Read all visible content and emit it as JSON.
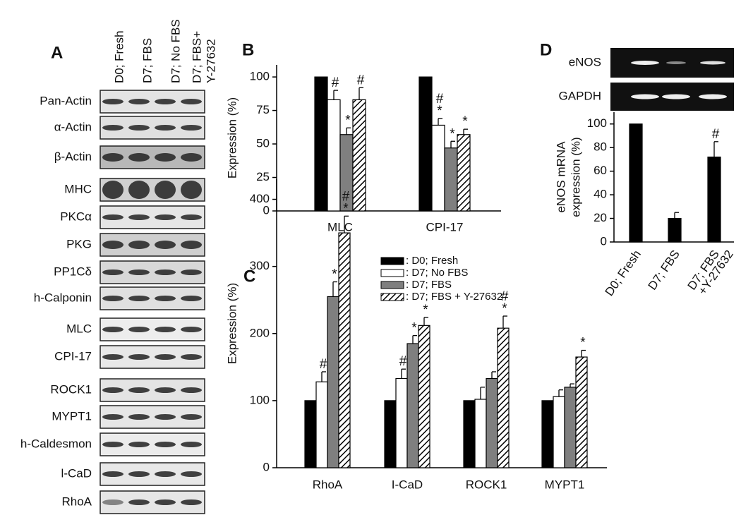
{
  "panel_a": {
    "label": "A",
    "columns": [
      [
        "D0; Fresh"
      ],
      [
        "D7; FBS"
      ],
      [
        "D7; No FBS"
      ],
      [
        "D7; FBS+",
        "Y-27632"
      ]
    ],
    "rows": [
      "Pan-Actin",
      "α-Actin",
      "β-Actin",
      "MHC",
      "PKCα",
      "PKG",
      "PP1Cδ",
      "h-Calponin",
      "MLC",
      "CPI-17",
      "ROCK1",
      "MYPT1",
      "h-Caldesmon",
      "l-CaD",
      "RhoA"
    ]
  },
  "panel_d_gel": {
    "rows": [
      "eNOS",
      "GAPDH"
    ]
  },
  "chart_data": [
    {
      "panel": "B",
      "type": "bar",
      "ylabel": "Expression (%)",
      "categories": [
        "MLC",
        "CPI-17"
      ],
      "ylim": [
        0,
        109
      ],
      "yticks": [
        0,
        25,
        50,
        75,
        100
      ],
      "series": [
        {
          "color": "#000000",
          "values": [
            100,
            100
          ],
          "errors": [
            null,
            null
          ],
          "annotations": [
            null,
            null
          ]
        },
        {
          "color": "#ffffff",
          "values": [
            83,
            64
          ],
          "errors": [
            7,
            5
          ],
          "annotations": [
            [
              "#"
            ],
            [
              "#",
              "*"
            ]
          ]
        },
        {
          "color": "#7f7f7f",
          "values": [
            57,
            47
          ],
          "errors": [
            5,
            5
          ],
          "annotations": [
            [
              "*"
            ],
            [
              "*"
            ]
          ]
        },
        {
          "color": "#ffffff",
          "hatch": true,
          "values": [
            83,
            57
          ],
          "errors": [
            9,
            4
          ],
          "annotations": [
            [
              "#"
            ],
            [
              "*"
            ]
          ]
        }
      ]
    },
    {
      "panel": "C",
      "type": "bar",
      "ylabel": "Expression (%)",
      "categories": [
        "RhoA",
        "I-CaD",
        "ROCK1",
        "MYPT1"
      ],
      "ylim": [
        0,
        430
      ],
      "yticks": [
        0,
        100,
        200,
        300,
        400
      ],
      "series": [
        {
          "name": ": D0; Fresh",
          "color": "#000000",
          "values": [
            100,
            100,
            100,
            100
          ],
          "errors": [
            null,
            null,
            null,
            null
          ],
          "annotations": [
            null,
            null,
            null,
            null
          ]
        },
        {
          "name": ": D7; No FBS",
          "color": "#ffffff",
          "values": [
            128,
            133,
            102,
            106
          ],
          "errors": [
            15,
            14,
            18,
            10
          ],
          "annotations": [
            [
              "#"
            ],
            [
              "#"
            ],
            null,
            null
          ]
        },
        {
          "name": ": D7; FBS",
          "color": "#7f7f7f",
          "values": [
            255,
            185,
            133,
            120
          ],
          "errors": [
            22,
            12,
            10,
            5
          ],
          "annotations": [
            [
              "*"
            ],
            [
              "*"
            ],
            null,
            null
          ]
        },
        {
          "name": ": D7; FBS + Y-27632",
          "color": "#ffffff",
          "hatch": true,
          "values": [
            350,
            212,
            208,
            165
          ],
          "errors": [
            25,
            12,
            18,
            10
          ],
          "annotations": [
            [
              "#",
              "*"
            ],
            [
              "*"
            ],
            [
              "#",
              "*"
            ],
            [
              "*"
            ]
          ]
        }
      ]
    },
    {
      "panel": "D",
      "type": "bar",
      "ylabel": [
        "eNOS mRNA",
        "expression (%)"
      ],
      "categories": [
        [
          "D0; Fresh"
        ],
        [
          "D7; FBS"
        ],
        [
          "D7; FBS",
          "+Y-27632"
        ]
      ],
      "ylim": [
        0,
        110
      ],
      "yticks": [
        0,
        20,
        40,
        60,
        80,
        100
      ],
      "series": [
        {
          "color": "#000000",
          "values": [
            100,
            20,
            72
          ],
          "errors": [
            null,
            5,
            13
          ],
          "annotations": [
            null,
            null,
            [
              "#"
            ]
          ]
        }
      ]
    }
  ]
}
